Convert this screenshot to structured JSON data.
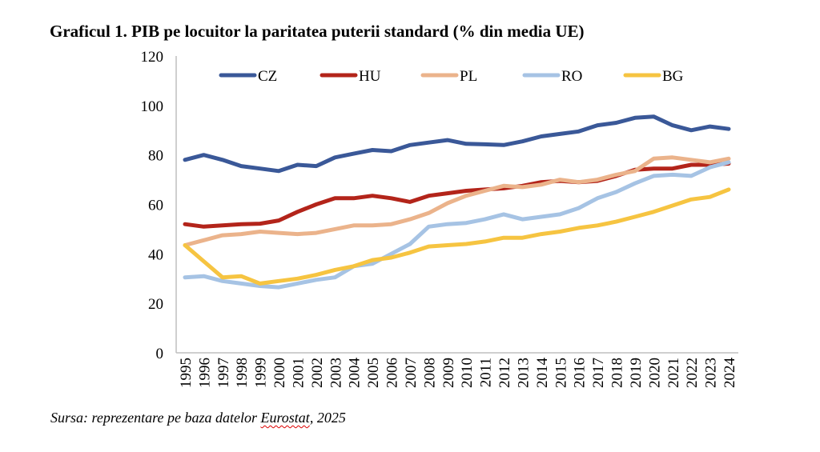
{
  "chart_data": {
    "type": "line",
    "title": "Graficul 1. PIB pe locuitor la paritatea puterii standard (% din media UE)",
    "xlabel": "",
    "ylabel": "",
    "ylim": [
      0,
      120
    ],
    "yticks": [
      "0",
      "20",
      "40",
      "60",
      "80",
      "100",
      "120"
    ],
    "grid": false,
    "legend_position": "top",
    "x": [
      "1995",
      "1996",
      "1997",
      "1998",
      "1999",
      "2000",
      "2001",
      "2002",
      "2003",
      "2004",
      "2005",
      "2006",
      "2007",
      "2008",
      "2009",
      "2010",
      "2011",
      "2012",
      "2013",
      "2014",
      "2015",
      "2016",
      "2017",
      "2018",
      "2019",
      "2020",
      "2021",
      "2022",
      "2023",
      "2024"
    ],
    "series": [
      {
        "name": "CZ",
        "color": "#3a5898",
        "values": [
          78,
          80,
          78,
          75.5,
          74.5,
          73.5,
          76,
          75.5,
          79,
          80.5,
          82,
          81.5,
          84,
          85,
          86,
          84.5,
          84.3,
          84,
          85.5,
          87.5,
          88.5,
          89.5,
          92,
          93,
          95,
          95.5,
          92,
          90,
          91.5,
          90.5
        ]
      },
      {
        "name": "HU",
        "color": "#b3241a",
        "values": [
          52,
          51,
          51.5,
          52,
          52.2,
          53.5,
          57,
          60,
          62.5,
          62.5,
          63.5,
          62.5,
          61,
          63.5,
          64.5,
          65.5,
          66,
          66.5,
          67.5,
          69,
          69.5,
          69,
          69.5,
          71.5,
          74,
          74.5,
          74.5,
          76,
          76,
          76.5
        ]
      },
      {
        "name": "PL",
        "color": "#ebb38b",
        "values": [
          43.5,
          45.5,
          47.5,
          48,
          49,
          48.5,
          48,
          48.5,
          50,
          51.5,
          51.5,
          52,
          54,
          56.5,
          60.5,
          63.5,
          65.5,
          67.5,
          67,
          68,
          70,
          69,
          70,
          72,
          73.5,
          78.5,
          79,
          78,
          77,
          78.5
        ]
      },
      {
        "name": "RO",
        "color": "#a6c3e4",
        "values": [
          30.5,
          31,
          29,
          28,
          27,
          26.5,
          28,
          29.5,
          30.5,
          35,
          36,
          40,
          44,
          51,
          52,
          52.5,
          54,
          56,
          54,
          55,
          56,
          58.5,
          62.5,
          65,
          68.5,
          71.5,
          72,
          71.5,
          75,
          77
        ]
      },
      {
        "name": "BG",
        "color": "#f6c441",
        "values": [
          43.5,
          37,
          30.5,
          31,
          28,
          29,
          30,
          31.5,
          33.5,
          35,
          37.5,
          38.5,
          40.5,
          43,
          43.5,
          44,
          45,
          46.5,
          46.5,
          48,
          49,
          50.5,
          51.5,
          53,
          55,
          57,
          59.5,
          62,
          63,
          66
        ]
      }
    ]
  },
  "source": {
    "prefix": "Sursa: reprezentare pe baza datelor ",
    "underlined": "Eurostat",
    "suffix": ", 2025"
  }
}
